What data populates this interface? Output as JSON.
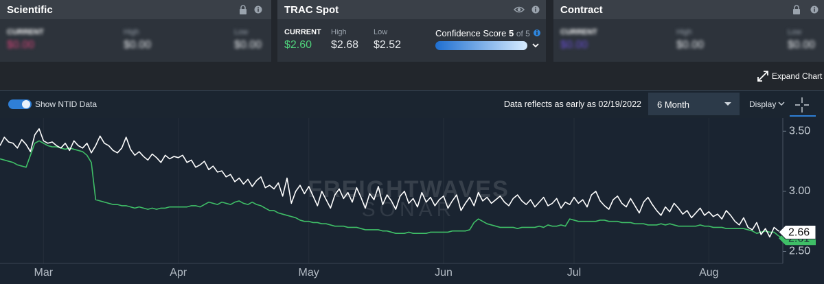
{
  "cards": [
    {
      "title": "Scientific",
      "current_label": "CURRENT",
      "current": "$0.00",
      "high_label": "High",
      "high": "$0.00",
      "low_label": "Low",
      "low": "$0.00"
    },
    {
      "title": "TRAC Spot",
      "current_label": "CURRENT",
      "current": "$2.60",
      "high_label": "High",
      "high": "$2.68",
      "low_label": "Low",
      "low": "$2.52",
      "confidence_label": "Confidence Score",
      "confidence_score": "5",
      "confidence_of": "of 5"
    },
    {
      "title": "Contract",
      "current_label": "CURRENT",
      "current": "$0.00",
      "high_label": "High",
      "high": "$0.00",
      "low_label": "Low",
      "low": "$0.00"
    }
  ],
  "expand_chart": "Expand Chart",
  "toolbar": {
    "toggle_label": "Show NTID Data",
    "data_note": "Data reflects as early as 02/19/2022",
    "range": "6 Month",
    "display": "Display"
  },
  "chart_data": {
    "type": "line",
    "watermark": [
      "FREIGHTWAVES",
      "SONAR"
    ],
    "categories": [
      null,
      null,
      null,
      null,
      null,
      null,
      null,
      null,
      null,
      null,
      "Mar",
      null,
      null,
      null,
      null,
      null,
      null,
      null,
      null,
      null,
      null,
      null,
      null,
      null,
      null,
      null,
      null,
      null,
      null,
      null,
      null,
      null,
      null,
      null,
      null,
      null,
      null,
      null,
      null,
      null,
      null,
      "Apr",
      null,
      null,
      null,
      null,
      null,
      null,
      null,
      null,
      null,
      null,
      null,
      null,
      null,
      null,
      null,
      null,
      null,
      null,
      null,
      null,
      null,
      null,
      null,
      null,
      null,
      null,
      null,
      null,
      null,
      "May",
      null,
      null,
      null,
      null,
      null,
      null,
      null,
      null,
      null,
      null,
      null,
      null,
      null,
      null,
      null,
      null,
      null,
      null,
      null,
      null,
      null,
      null,
      null,
      null,
      null,
      null,
      null,
      null,
      null,
      null,
      "Jun",
      null,
      null,
      null,
      null,
      null,
      null,
      null,
      null,
      null,
      null,
      null,
      null,
      null,
      null,
      null,
      null,
      null,
      null,
      null,
      null,
      null,
      null,
      null,
      null,
      null,
      null,
      null,
      null,
      null,
      "Jul",
      null,
      null,
      null,
      null,
      null,
      null,
      null,
      null,
      null,
      null,
      null,
      null,
      null,
      null,
      null,
      null,
      null,
      null,
      null,
      null,
      null,
      null,
      null,
      null,
      null,
      null,
      null,
      null,
      null,
      null,
      "Aug",
      null,
      null,
      null,
      null,
      null,
      null,
      null,
      null,
      null,
      null,
      null,
      null,
      null,
      null,
      null,
      null,
      null
    ],
    "series": [
      {
        "color": "#ffffff",
        "values": [
          3.38,
          3.45,
          3.41,
          3.4,
          3.36,
          3.43,
          3.39,
          3.33,
          3.47,
          3.52,
          3.42,
          3.4,
          3.41,
          3.38,
          3.36,
          3.4,
          3.34,
          3.42,
          3.38,
          3.36,
          3.4,
          3.32,
          3.38,
          3.46,
          3.4,
          3.38,
          3.34,
          3.32,
          3.36,
          3.45,
          3.35,
          3.3,
          3.33,
          3.29,
          3.26,
          3.31,
          3.28,
          3.24,
          3.3,
          3.27,
          3.29,
          3.28,
          3.3,
          3.24,
          3.26,
          3.2,
          3.22,
          3.25,
          3.18,
          3.21,
          3.16,
          3.17,
          3.12,
          3.14,
          3.08,
          3.11,
          3.06,
          3.1,
          3.04,
          3.09,
          3.12,
          3.03,
          3.05,
          3.02,
          3.07,
          2.96,
          3.11,
          2.9,
          3.0,
          3.05,
          2.98,
          3.04,
          2.96,
          2.88,
          3.0,
          2.93,
          2.86,
          2.97,
          3.02,
          2.94,
          2.99,
          2.91,
          3.03,
          2.95,
          2.86,
          2.98,
          2.93,
          3.04,
          2.89,
          2.97,
          2.92,
          2.85,
          2.96,
          3.0,
          2.9,
          2.94,
          2.87,
          2.99,
          2.91,
          2.95,
          2.88,
          2.93,
          2.96,
          2.86,
          2.92,
          2.97,
          2.84,
          2.9,
          2.95,
          2.88,
          2.99,
          2.92,
          2.95,
          2.9,
          2.93,
          2.96,
          2.91,
          2.88,
          2.94,
          2.97,
          2.92,
          2.89,
          2.93,
          2.87,
          2.91,
          2.95,
          2.88,
          2.9,
          2.94,
          2.86,
          2.91,
          2.89,
          2.95,
          2.9,
          2.93,
          2.87,
          2.97,
          3.0,
          2.92,
          2.88,
          2.85,
          2.93,
          2.96,
          2.9,
          2.87,
          2.94,
          2.88,
          2.82,
          2.91,
          2.95,
          2.89,
          2.84,
          2.8,
          2.87,
          2.83,
          2.9,
          2.86,
          2.81,
          2.84,
          2.78,
          2.82,
          2.86,
          2.8,
          2.83,
          2.79,
          2.81,
          2.77,
          2.84,
          2.8,
          2.75,
          2.72,
          2.78,
          2.7,
          2.68,
          2.74,
          2.64,
          2.69,
          2.62,
          2.7,
          2.67,
          2.66
        ]
      },
      {
        "color": "#3fbf67",
        "values": [
          3.27,
          3.26,
          3.25,
          3.24,
          3.22,
          3.21,
          3.2,
          3.3,
          3.4,
          3.42,
          3.4,
          3.38,
          3.37,
          3.37,
          3.36,
          3.35,
          3.36,
          3.35,
          3.34,
          3.33,
          3.3,
          3.24,
          2.93,
          2.92,
          2.91,
          2.9,
          2.89,
          2.89,
          2.88,
          2.88,
          2.87,
          2.86,
          2.87,
          2.86,
          2.85,
          2.86,
          2.85,
          2.86,
          2.86,
          2.87,
          2.87,
          2.87,
          2.87,
          2.87,
          2.88,
          2.88,
          2.87,
          2.89,
          2.91,
          2.9,
          2.89,
          2.91,
          2.9,
          2.89,
          2.91,
          2.92,
          2.9,
          2.89,
          2.91,
          2.89,
          2.88,
          2.86,
          2.84,
          2.84,
          2.82,
          2.81,
          2.8,
          2.79,
          2.78,
          2.76,
          2.75,
          2.75,
          2.74,
          2.74,
          2.73,
          2.73,
          2.72,
          2.71,
          2.71,
          2.71,
          2.7,
          2.7,
          2.7,
          2.69,
          2.68,
          2.68,
          2.68,
          2.68,
          2.67,
          2.67,
          2.66,
          2.65,
          2.65,
          2.65,
          2.66,
          2.65,
          2.65,
          2.65,
          2.65,
          2.66,
          2.66,
          2.66,
          2.66,
          2.66,
          2.67,
          2.67,
          2.67,
          2.67,
          2.68,
          2.74,
          2.77,
          2.75,
          2.73,
          2.72,
          2.71,
          2.7,
          2.7,
          2.7,
          2.7,
          2.69,
          2.7,
          2.7,
          2.7,
          2.7,
          2.71,
          2.7,
          2.72,
          2.71,
          2.71,
          2.72,
          2.71,
          2.77,
          2.76,
          2.75,
          2.75,
          2.75,
          2.75,
          2.75,
          2.76,
          2.76,
          2.75,
          2.75,
          2.75,
          2.74,
          2.74,
          2.74,
          2.73,
          2.73,
          2.73,
          2.72,
          2.72,
          2.72,
          2.73,
          2.72,
          2.73,
          2.72,
          2.71,
          2.71,
          2.71,
          2.71,
          2.71,
          2.72,
          2.71,
          2.71,
          2.7,
          2.7,
          2.7,
          2.69,
          2.69,
          2.69,
          2.69,
          2.69,
          2.68,
          2.67,
          2.65,
          2.66,
          2.67,
          2.66,
          2.66,
          2.63,
          2.61
        ]
      }
    ],
    "ylim": [
      2.4,
      3.61
    ],
    "yticks": [
      {
        "value": 2.5,
        "label": "2.50"
      },
      {
        "value": 3,
        "label": "3.00"
      },
      {
        "value": 3.5,
        "label": "3.50"
      }
    ],
    "grid": true
  }
}
